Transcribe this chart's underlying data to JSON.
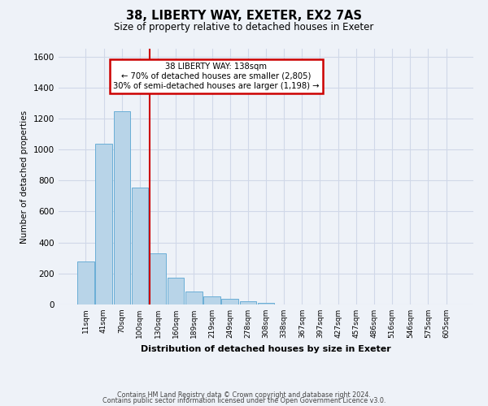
{
  "title": "38, LIBERTY WAY, EXETER, EX2 7AS",
  "subtitle": "Size of property relative to detached houses in Exeter",
  "xlabel": "Distribution of detached houses by size in Exeter",
  "ylabel": "Number of detached properties",
  "bar_labels": [
    "11sqm",
    "41sqm",
    "70sqm",
    "100sqm",
    "130sqm",
    "160sqm",
    "189sqm",
    "219sqm",
    "249sqm",
    "278sqm",
    "308sqm",
    "338sqm",
    "367sqm",
    "397sqm",
    "427sqm",
    "457sqm",
    "486sqm",
    "516sqm",
    "546sqm",
    "575sqm",
    "605sqm"
  ],
  "bar_heights": [
    280,
    1035,
    1245,
    755,
    330,
    175,
    82,
    50,
    37,
    20,
    10,
    0,
    0,
    0,
    0,
    0,
    0,
    0,
    0,
    0,
    0
  ],
  "bar_color": "#b8d4e8",
  "bar_edge_color": "#6aaed6",
  "property_line_color": "#cc0000",
  "annotation_line1": "38 LIBERTY WAY: 138sqm",
  "annotation_line2": "← 70% of detached houses are smaller (2,805)",
  "annotation_line3": "30% of semi-detached houses are larger (1,198) →",
  "annotation_box_facecolor": "#ffffff",
  "annotation_box_edgecolor": "#cc0000",
  "ylim": [
    0,
    1650
  ],
  "yticks": [
    0,
    200,
    400,
    600,
    800,
    1000,
    1200,
    1400,
    1600
  ],
  "footer1": "Contains HM Land Registry data © Crown copyright and database right 2024.",
  "footer2": "Contains public sector information licensed under the Open Government Licence v3.0.",
  "background_color": "#eef2f8",
  "grid_color": "#d0d8e8"
}
